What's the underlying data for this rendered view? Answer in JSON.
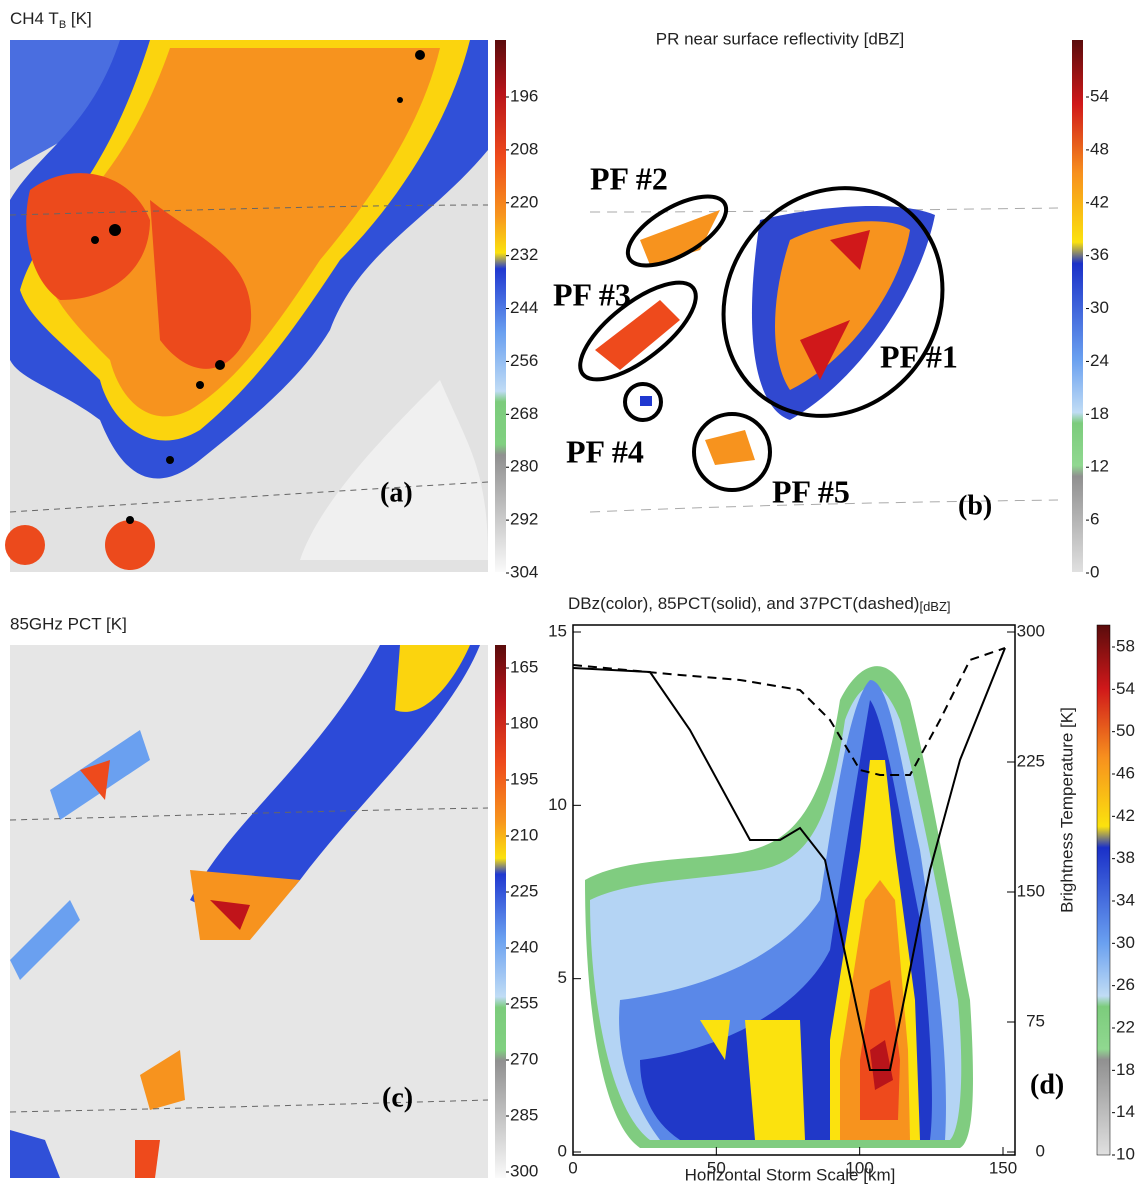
{
  "panels": [
    {
      "title": "CH4 T",
      "title_sub": "B",
      "title_unit": "[K]",
      "label": "(a)",
      "colorbar_ticks": [
        196,
        208,
        220,
        232,
        244,
        256,
        268,
        280,
        292,
        304
      ]
    },
    {
      "title": "PR near surface reflectivity [dBZ]",
      "label": "(b)",
      "annotations": [
        "PF #1",
        "PF #2",
        "PF #3",
        "PF #4",
        "PF #5"
      ],
      "colorbar_ticks": [
        54,
        48,
        42,
        36,
        30,
        24,
        18,
        12,
        6,
        0
      ]
    },
    {
      "title": "85GHz PCT [K]",
      "label": "(c)",
      "colorbar_ticks": [
        165,
        180,
        195,
        210,
        225,
        240,
        255,
        270,
        285,
        300
      ]
    },
    {
      "title": "DBz(color), 85PCT(solid), and 37PCT(dashed)",
      "title_unit": "[dBZ]",
      "label": "(d)",
      "x_label": "Horizontal Storm Scale [km]",
      "y2_label": "Brightness Temperature [K]",
      "x_ticks": [
        0,
        50,
        100,
        150
      ],
      "y_ticks": [
        0,
        5,
        10,
        15
      ],
      "y2_ticks": [
        0,
        75,
        150,
        225,
        300
      ],
      "colorbar_ticks": [
        58,
        54,
        50,
        46,
        42,
        38,
        34,
        30,
        26,
        22,
        18,
        14,
        10
      ]
    }
  ]
}
